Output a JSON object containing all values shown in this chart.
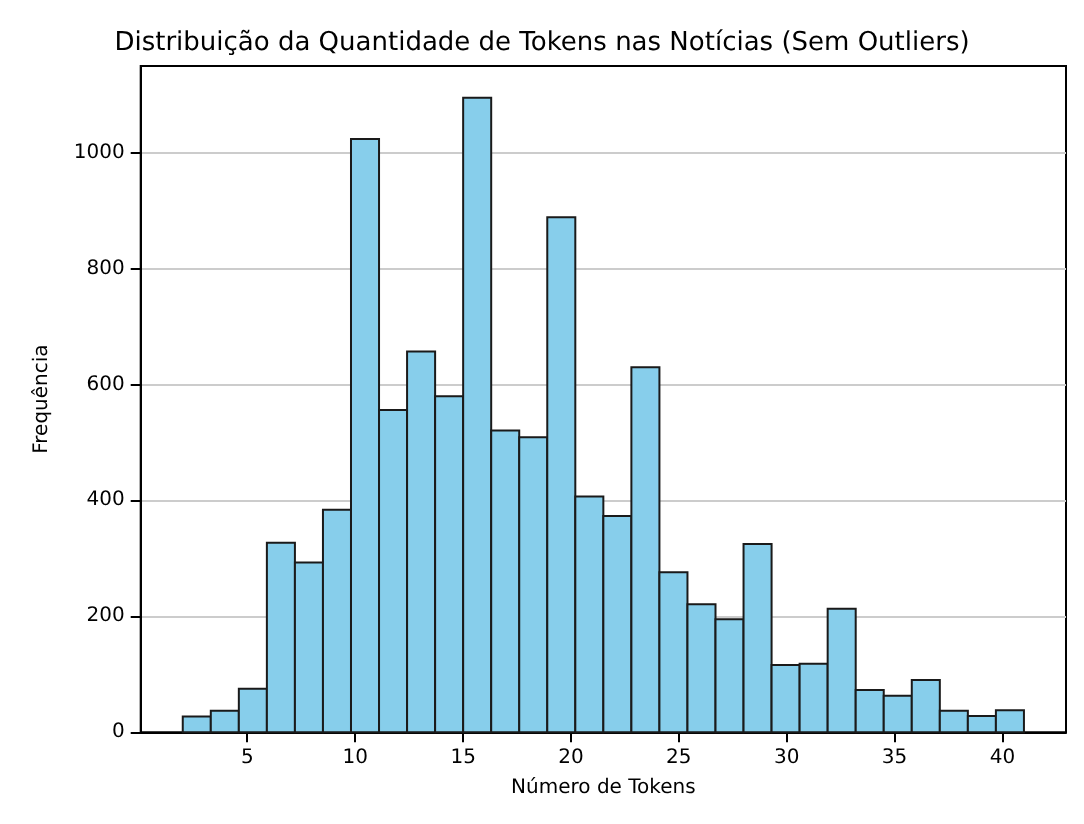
{
  "chart_data": {
    "type": "histogram",
    "title": "Distribuição da Quantidade de Tokens nas Notícias (Sem Outliers)",
    "xlabel": "Número de Tokens",
    "ylabel": "Frequência",
    "bins": [
      2,
      3.3,
      4.6,
      5.9,
      7.2,
      8.5,
      9.8,
      11.1,
      12.4,
      13.7,
      15,
      16.3,
      17.6,
      18.9,
      20.2,
      21.5,
      22.8,
      24.1,
      25.4,
      26.7,
      28,
      29.3,
      30.6,
      31.9,
      33.2,
      34.5,
      35.8,
      37.1,
      38.4,
      39.7,
      41
    ],
    "values": [
      27,
      37,
      75,
      327,
      293,
      384,
      1024,
      556,
      657,
      580,
      1095,
      521,
      509,
      889,
      407,
      373,
      630,
      276,
      221,
      195,
      325,
      116,
      118,
      213,
      73,
      63,
      90,
      37,
      28,
      38
    ],
    "color": "#87ceeb",
    "xlim": [
      0.05,
      42.95
    ],
    "xticks": [
      5,
      10,
      15,
      20,
      25,
      30,
      35,
      40
    ],
    "ylim": [
      0,
      1150
    ],
    "yticks": [
      0,
      200,
      400,
      600,
      800,
      1000
    ],
    "grid": "y"
  }
}
